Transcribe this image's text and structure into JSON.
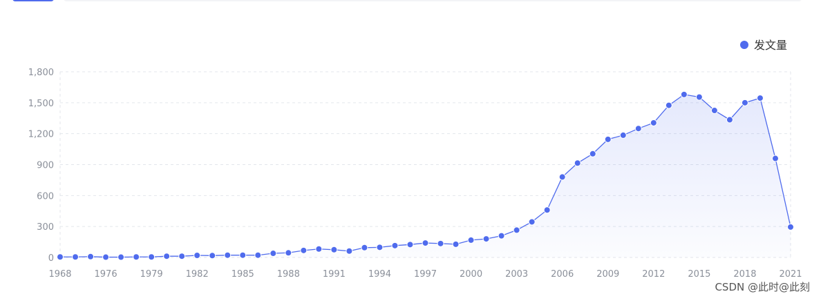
{
  "chart_data": {
    "type": "line",
    "categories": [
      "1968",
      null,
      null,
      "1976",
      null,
      null,
      "1979",
      null,
      null,
      "1982",
      null,
      null,
      "1985",
      null,
      null,
      "1988",
      null,
      null,
      "1991",
      null,
      null,
      "1994",
      null,
      null,
      "1997",
      null,
      null,
      "2000",
      null,
      null,
      "2003",
      null,
      null,
      "2006",
      null,
      null,
      "2009",
      null,
      null,
      "2012",
      null,
      null,
      "2015",
      null,
      null,
      "2018",
      null,
      null,
      "2021"
    ],
    "series": [
      {
        "name": "发文量",
        "color": "#4f6bed",
        "values": [
          5,
          5,
          8,
          3,
          3,
          5,
          5,
          12,
          12,
          20,
          18,
          22,
          22,
          22,
          40,
          45,
          68,
          82,
          75,
          62,
          95,
          98,
          115,
          125,
          140,
          135,
          128,
          168,
          180,
          210,
          265,
          345,
          460,
          780,
          915,
          1005,
          1145,
          1185,
          1250,
          1305,
          1475,
          1580,
          1555,
          1425,
          1335,
          1500,
          1545,
          960,
          295
        ]
      }
    ],
    "ylim": [
      0,
      1800
    ],
    "yticks": [
      0,
      300,
      600,
      900,
      {
        "value": 1200,
        "label": "1,200"
      },
      {
        "value": 1500,
        "label": "1,500"
      },
      {
        "value": 1800,
        "label": "1,800"
      }
    ],
    "grid": true,
    "legend": "top-right"
  },
  "watermark": "CSDN @此时@此刻"
}
